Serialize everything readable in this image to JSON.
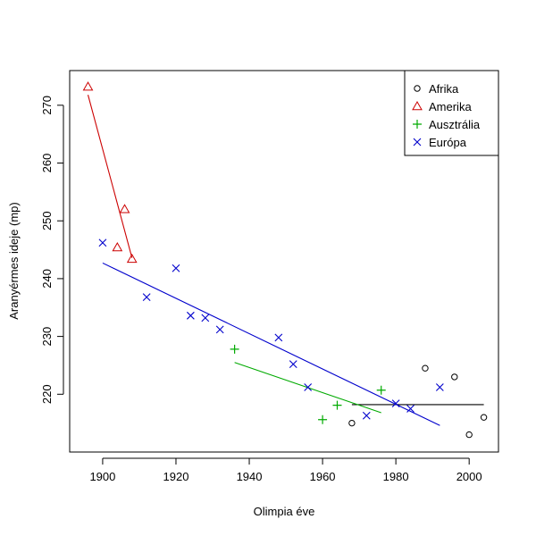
{
  "chart_data": {
    "type": "scatter",
    "title": "",
    "xlabel": "Olimpia éve",
    "ylabel": "Aranyérmes ideje (mp)",
    "xlim": [
      1891,
      2008
    ],
    "ylim": [
      210,
      276
    ],
    "xticks": [
      1900,
      1920,
      1940,
      1960,
      1980,
      2000
    ],
    "yticks": [
      220,
      230,
      240,
      250,
      260,
      270
    ],
    "legend_position": "top-right",
    "series": [
      {
        "name": "Afrika",
        "marker": "circle",
        "color": "#000000",
        "points": [
          [
            1968,
            215.0
          ],
          [
            1988,
            224.5
          ],
          [
            1996,
            223.0
          ],
          [
            2000,
            213.0
          ],
          [
            2004,
            216.0
          ]
        ],
        "fit": [
          [
            1968,
            218.2
          ],
          [
            2004,
            218.2
          ]
        ]
      },
      {
        "name": "Amerika",
        "marker": "triangle",
        "color": "#cc0000",
        "points": [
          [
            1896,
            273.2
          ],
          [
            1904,
            245.4
          ],
          [
            1906,
            252.0
          ],
          [
            1908,
            243.4
          ]
        ],
        "fit": [
          [
            1896,
            271.8
          ],
          [
            1908,
            243.6
          ]
        ]
      },
      {
        "name": "Ausztrália",
        "marker": "plus",
        "color": "#00aa00",
        "points": [
          [
            1936,
            227.8
          ],
          [
            1960,
            215.6
          ],
          [
            1964,
            218.1
          ],
          [
            1976,
            220.7
          ]
        ],
        "fit": [
          [
            1936,
            225.5
          ],
          [
            1976,
            216.8
          ]
        ]
      },
      {
        "name": "Európa",
        "marker": "cross",
        "color": "#0000cc",
        "points": [
          [
            1900,
            246.2
          ],
          [
            1912,
            236.8
          ],
          [
            1920,
            241.8
          ],
          [
            1924,
            233.6
          ],
          [
            1928,
            233.2
          ],
          [
            1932,
            231.2
          ],
          [
            1948,
            229.8
          ],
          [
            1952,
            225.2
          ],
          [
            1956,
            221.2
          ],
          [
            1972,
            216.3
          ],
          [
            1980,
            218.4
          ],
          [
            1984,
            217.5
          ],
          [
            1992,
            221.2
          ]
        ],
        "fit": [
          [
            1900,
            242.7
          ],
          [
            1992,
            214.6
          ]
        ]
      }
    ]
  }
}
